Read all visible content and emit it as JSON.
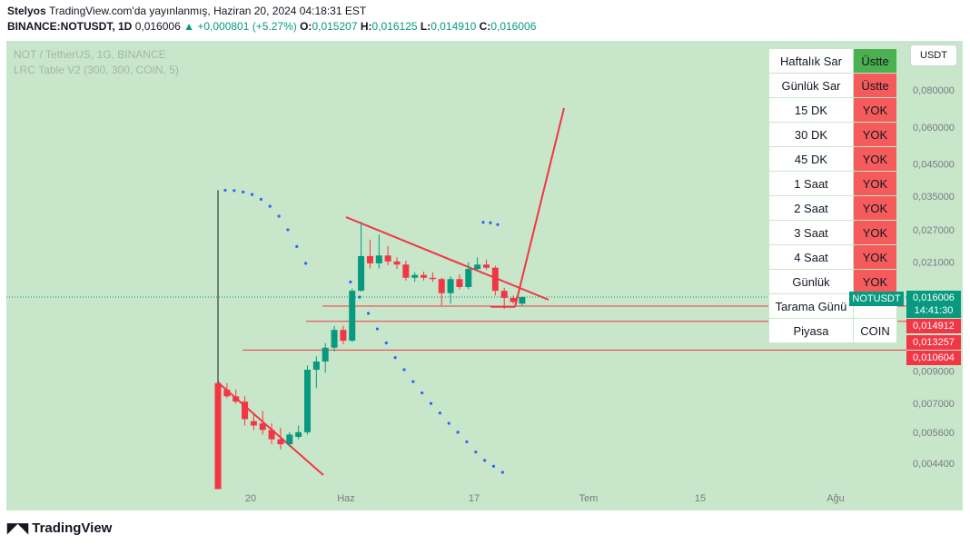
{
  "header": {
    "publisher": "Stelyos",
    "published_line": "TradingView.com'da yayınlanmış, Haziran 20, 2024 04:18:31 EST",
    "symbol": "BINANCE:NOTUSDT, 1D",
    "last": "0,016006",
    "change": "+0,000801 (+5.27%)",
    "o_label": "O:",
    "o": "0,015207",
    "h_label": "H:",
    "h": "0,016125",
    "l_label": "L:",
    "l": "0,014910",
    "c_label": "C:",
    "c": "0,016006"
  },
  "legend": {
    "symbol_desc": "NOT / TetherUS, 1G, BINANCE",
    "indicator": "LRC Table V2 (300, 300, COIN, 5)"
  },
  "currency_button": "USDT",
  "colors": {
    "background": "#c8e6c9",
    "up": "#089981",
    "down": "#f23645",
    "dots": "#2962ff",
    "cell_green": "#4caf50",
    "cell_red": "#f55b5b"
  },
  "table": [
    {
      "label": "Haftalık Sar",
      "value": "Üstte",
      "status": "green"
    },
    {
      "label": "Günlük Sar",
      "value": "Üstte",
      "status": "red"
    },
    {
      "label": "15 DK",
      "value": "YOK",
      "status": "red"
    },
    {
      "label": "30 DK",
      "value": "YOK",
      "status": "red"
    },
    {
      "label": "45 DK",
      "value": "YOK",
      "status": "red"
    },
    {
      "label": "1 Saat",
      "value": "YOK",
      "status": "red"
    },
    {
      "label": "2 Saat",
      "value": "YOK",
      "status": "red"
    },
    {
      "label": "3 Saat",
      "value": "YOK",
      "status": "red"
    },
    {
      "label": "4 Saat",
      "value": "YOK",
      "status": "red"
    },
    {
      "label": "Günlük",
      "value": "YOK",
      "status": "red"
    },
    {
      "label": "Tarama Günü",
      "value": "",
      "status": "none"
    },
    {
      "label": "Piyasa",
      "value": "COIN",
      "status": "none"
    }
  ],
  "price_badges": {
    "symbol": "NOTUSDT",
    "price": "0,016006",
    "countdown": "14:41:30",
    "levels": [
      "0,014912",
      "0,013257",
      "0,010604"
    ]
  },
  "footer": "TradingView",
  "chart_data": {
    "type": "candlestick",
    "symbol": "NOTUSDT",
    "timeframe": "1D",
    "y_scale": "log",
    "y_ticks": [
      "0,080000",
      "0,060000",
      "0,045000",
      "0,035000",
      "0,027000",
      "0,021000",
      "0,016006",
      "0,014912",
      "0,013257",
      "0,010604",
      "0,009000",
      "0,007000",
      "0,005600",
      "0,004400"
    ],
    "x_ticks": [
      "20",
      "Haz",
      "17",
      "Tem",
      "15",
      "Ağu"
    ],
    "candles": [
      {
        "o": 0.0082,
        "h": 0.0367,
        "l": 0.0036,
        "c": 0.0036
      },
      {
        "o": 0.0078,
        "h": 0.0082,
        "l": 0.0073,
        "c": 0.0074
      },
      {
        "o": 0.0074,
        "h": 0.0078,
        "l": 0.007,
        "c": 0.0071
      },
      {
        "o": 0.0071,
        "h": 0.0074,
        "l": 0.0059,
        "c": 0.0062
      },
      {
        "o": 0.0061,
        "h": 0.0065,
        "l": 0.0057,
        "c": 0.0059
      },
      {
        "o": 0.006,
        "h": 0.0066,
        "l": 0.0055,
        "c": 0.0057
      },
      {
        "o": 0.0057,
        "h": 0.006,
        "l": 0.0051,
        "c": 0.0053
      },
      {
        "o": 0.0053,
        "h": 0.0058,
        "l": 0.0049,
        "c": 0.0051
      },
      {
        "o": 0.0051,
        "h": 0.0056,
        "l": 0.005,
        "c": 0.0055
      },
      {
        "o": 0.0054,
        "h": 0.0059,
        "l": 0.0053,
        "c": 0.0056
      },
      {
        "o": 0.0056,
        "h": 0.0094,
        "l": 0.0055,
        "c": 0.0091
      },
      {
        "o": 0.0091,
        "h": 0.0101,
        "l": 0.0079,
        "c": 0.0097
      },
      {
        "o": 0.0097,
        "h": 0.0112,
        "l": 0.0089,
        "c": 0.0108
      },
      {
        "o": 0.0108,
        "h": 0.0128,
        "l": 0.0105,
        "c": 0.0124
      },
      {
        "o": 0.0124,
        "h": 0.0128,
        "l": 0.0111,
        "c": 0.0114
      },
      {
        "o": 0.0114,
        "h": 0.0171,
        "l": 0.0113,
        "c": 0.0168
      },
      {
        "o": 0.0168,
        "h": 0.0287,
        "l": 0.0167,
        "c": 0.022
      },
      {
        "o": 0.022,
        "h": 0.025,
        "l": 0.02,
        "c": 0.0208
      },
      {
        "o": 0.0208,
        "h": 0.026,
        "l": 0.02,
        "c": 0.0221
      },
      {
        "o": 0.0221,
        "h": 0.0238,
        "l": 0.0205,
        "c": 0.0211
      },
      {
        "o": 0.0211,
        "h": 0.0218,
        "l": 0.0199,
        "c": 0.0206
      },
      {
        "o": 0.0206,
        "h": 0.0212,
        "l": 0.0182,
        "c": 0.0186
      },
      {
        "o": 0.0186,
        "h": 0.0194,
        "l": 0.018,
        "c": 0.019
      },
      {
        "o": 0.019,
        "h": 0.0195,
        "l": 0.0182,
        "c": 0.0186
      },
      {
        "o": 0.0186,
        "h": 0.0194,
        "l": 0.018,
        "c": 0.0184
      },
      {
        "o": 0.0184,
        "h": 0.0186,
        "l": 0.015,
        "c": 0.0165
      },
      {
        "o": 0.0165,
        "h": 0.0188,
        "l": 0.0152,
        "c": 0.0184
      },
      {
        "o": 0.0184,
        "h": 0.0191,
        "l": 0.017,
        "c": 0.0173
      },
      {
        "o": 0.0173,
        "h": 0.021,
        "l": 0.017,
        "c": 0.0199
      },
      {
        "o": 0.0199,
        "h": 0.0218,
        "l": 0.0196,
        "c": 0.0206
      },
      {
        "o": 0.0206,
        "h": 0.0214,
        "l": 0.0198,
        "c": 0.0201
      },
      {
        "o": 0.0201,
        "h": 0.0204,
        "l": 0.0162,
        "c": 0.0168
      },
      {
        "o": 0.0168,
        "h": 0.0172,
        "l": 0.0146,
        "c": 0.0159
      },
      {
        "o": 0.0159,
        "h": 0.0162,
        "l": 0.0152,
        "c": 0.0154
      },
      {
        "o": 0.0152,
        "h": 0.0161,
        "l": 0.0149,
        "c": 0.016
      }
    ],
    "sar_dots": [
      0.0367,
      0.0366,
      0.0362,
      0.0355,
      0.0342,
      0.0324,
      0.03,
      0.027,
      0.0237,
      0.0208,
      0.018,
      0.016,
      0.0141,
      0.0125,
      0.0112,
      0.01,
      0.0091,
      0.0083,
      0.0076,
      0.007,
      0.0065,
      0.006,
      0.0056,
      0.0052,
      0.0048,
      0.0045,
      0.0043,
      0.0041
    ],
    "horizontal_levels": [
      0.014912,
      0.013257,
      0.010604
    ],
    "last_price": 0.016006
  }
}
